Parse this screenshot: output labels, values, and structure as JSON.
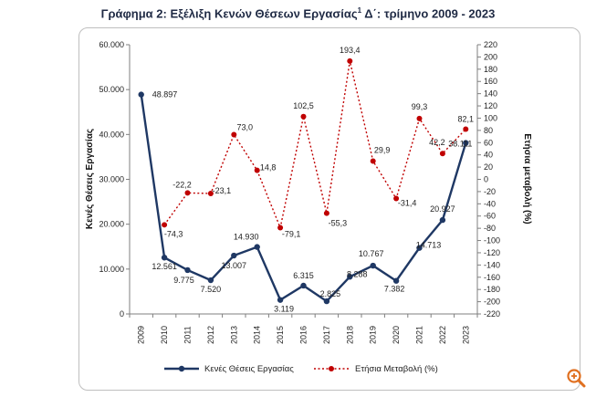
{
  "title": {
    "text_before": "Γράφημα 2: Εξέλιξη Κενών Θέσεων Εργασίας",
    "superscript": "1",
    "text_after": " Δ΄: τρίμηνο 2009 - 2023"
  },
  "icons": {
    "zoom": "zoom-magnifier-icon"
  },
  "colors": {
    "vacancies": "#1f3864",
    "change": "#c00000"
  },
  "chart_data": {
    "type": "line",
    "categories": [
      "2009",
      "2010",
      "2011",
      "2012",
      "2013",
      "2014",
      "2015",
      "2016",
      "2017",
      "2018",
      "2019",
      "2020",
      "2021",
      "2022",
      "2023"
    ],
    "ylabel": "Κενές Θέσεις Εργασίας",
    "y2label": "Ετήσια μεταβολή (%)",
    "ylim": [
      0,
      60000
    ],
    "y2lim": [
      -220,
      220
    ],
    "y_ticks": [
      "0",
      "10.000",
      "20.000",
      "30.000",
      "40.000",
      "50.000",
      "60.000"
    ],
    "y2_ticks": [
      "-220",
      "-200",
      "-180",
      "-160",
      "-140",
      "-120",
      "-100",
      "-80",
      "-60",
      "-40",
      "-20",
      "0",
      "20",
      "40",
      "60",
      "80",
      "100",
      "120",
      "140",
      "160",
      "180",
      "200",
      "220"
    ],
    "legend_position": "bottom",
    "series": [
      {
        "name": "Κενές Θέσεις Εργασίας",
        "axis": "left",
        "style": "solid",
        "values": [
          48897,
          12561,
          9775,
          7520,
          13007,
          14930,
          3119,
          6315,
          2825,
          8288,
          10767,
          7382,
          14713,
          20927,
          38111
        ],
        "labels": [
          null,
          "12.561",
          "9.775",
          "7.520",
          "13.007",
          "14.930",
          "3.119",
          "6.315",
          "2.825",
          "8.288",
          "10.767",
          "7.382",
          "14.713",
          "20.927",
          "38.111"
        ],
        "first_label": "48.897"
      },
      {
        "name": "Ετήσια Μεταβολή (%)",
        "axis": "right",
        "style": "dotted",
        "values": [
          null,
          -74.3,
          -22.2,
          -23.1,
          73.0,
          14.8,
          -79.1,
          102.5,
          -55.3,
          193.4,
          29.9,
          -31.4,
          99.3,
          42.2,
          82.1
        ],
        "labels": [
          null,
          "-74,3",
          "-22,2",
          "-23,1",
          "73,0",
          "14,8",
          "-79,1",
          "102,5",
          "-55,3",
          "193,4",
          "29,9",
          "-31,4",
          "99,3",
          "42,2",
          "82,1"
        ]
      }
    ]
  }
}
